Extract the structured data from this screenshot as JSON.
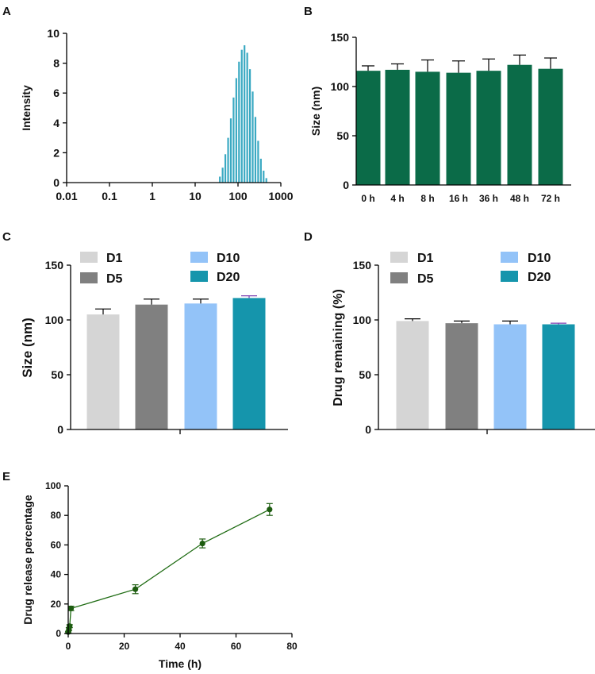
{
  "panel_labels": [
    "A",
    "B",
    "C",
    "D",
    "E"
  ],
  "colors": {
    "teal_bar": "#3aa9c2",
    "dark_green": "#0b6b48",
    "line_green": "#1e6b12",
    "marker_green": "#1d5c10",
    "D1": "#d5d5d5",
    "D5": "#808080",
    "D10": "#93c3f8",
    "D20": "#1595ac",
    "purple_err": "#7a3fb0",
    "axis": "#000000"
  },
  "chart_data": [
    {
      "id": "A",
      "type": "bar",
      "title": "",
      "xlabel": "",
      "ylabel": "Intensity",
      "xscale": "log",
      "xlim": [
        0.01,
        1000
      ],
      "ylim": [
        0,
        10
      ],
      "xticks": [
        "0.01",
        "0.1",
        "1",
        "10",
        "100",
        "1000"
      ],
      "yticks": [
        "0",
        "2",
        "4",
        "6",
        "8",
        "10"
      ],
      "x": [
        37.8,
        43.8,
        50.7,
        58.8,
        68.1,
        78.8,
        91.3,
        105.7,
        122.4,
        141.8,
        164.2,
        190.1,
        220.2,
        255.0,
        295.3,
        342.0,
        396.1,
        458.7
      ],
      "values": [
        0.4,
        1.0,
        1.9,
        3.0,
        4.3,
        5.7,
        7.0,
        8.1,
        8.9,
        9.2,
        8.7,
        7.6,
        6.1,
        4.4,
        2.8,
        1.6,
        0.8,
        0.3
      ]
    },
    {
      "id": "B",
      "type": "bar",
      "title": "",
      "xlabel": "",
      "ylabel": "Size (nm)",
      "ylim": [
        0,
        150
      ],
      "yticks": [
        "0",
        "50",
        "100",
        "150"
      ],
      "categories": [
        "0 h",
        "4 h",
        "8 h",
        "16 h",
        "36 h",
        "48 h",
        "72 h"
      ],
      "values": [
        116,
        117,
        115,
        114,
        116,
        122,
        118
      ],
      "errors": [
        5,
        6,
        12,
        12,
        12,
        10,
        11
      ]
    },
    {
      "id": "C",
      "type": "bar",
      "title": "",
      "xlabel": "",
      "ylabel": "Size (nm)",
      "ylim": [
        0,
        150
      ],
      "yticks": [
        "0",
        "50",
        "100",
        "150"
      ],
      "legend": [
        "D1",
        "D5",
        "D10",
        "D20"
      ],
      "legend_position": "top",
      "categories": [
        "D1",
        "D5",
        "D10",
        "D20"
      ],
      "values": [
        105,
        114,
        115,
        120
      ],
      "errors": [
        5,
        5,
        4,
        2
      ]
    },
    {
      "id": "D",
      "type": "bar",
      "title": "",
      "xlabel": "",
      "ylabel": "Drug remaining (%)",
      "ylim": [
        0,
        150
      ],
      "yticks": [
        "0",
        "50",
        "100",
        "150"
      ],
      "legend": [
        "D1",
        "D5",
        "D10",
        "D20"
      ],
      "legend_position": "top",
      "categories": [
        "D1",
        "D5",
        "D10",
        "D20"
      ],
      "values": [
        99,
        97,
        96,
        96
      ],
      "errors": [
        2,
        2,
        3,
        1
      ]
    },
    {
      "id": "E",
      "type": "line",
      "title": "",
      "xlabel": "Time (h)",
      "ylabel": "Drug release percentage",
      "xlim": [
        0,
        80
      ],
      "ylim": [
        0,
        100
      ],
      "xticks": [
        "0",
        "20",
        "40",
        "60",
        "80"
      ],
      "yticks": [
        "0",
        "20",
        "40",
        "60",
        "80",
        "100"
      ],
      "x": [
        0,
        0.25,
        0.5,
        1,
        24,
        48,
        72
      ],
      "values": [
        1,
        3,
        5,
        17,
        30,
        61,
        84
      ],
      "errors": [
        0.5,
        1,
        1,
        1.5,
        3,
        3,
        4
      ]
    }
  ]
}
